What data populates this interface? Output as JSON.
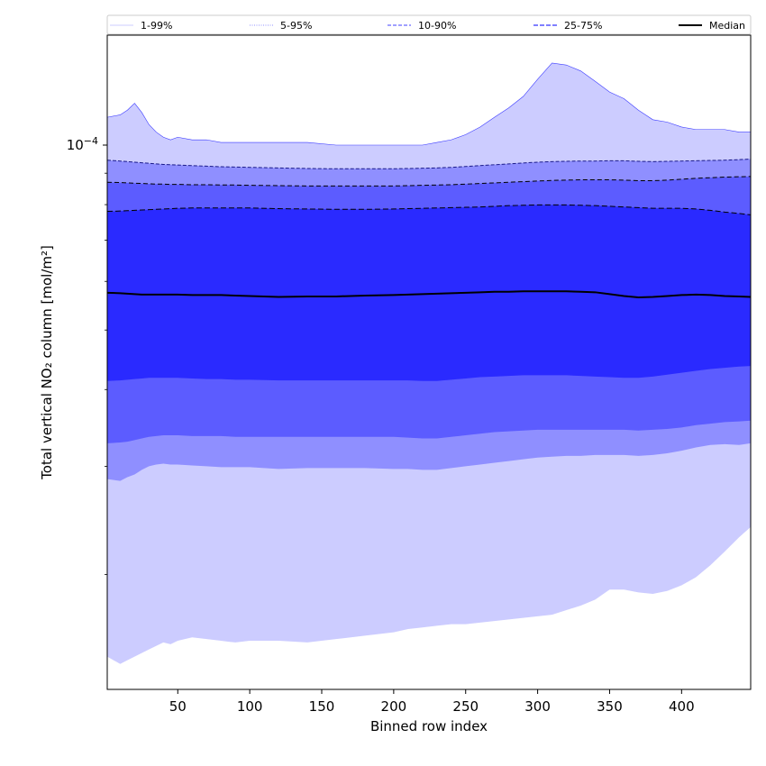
{
  "chart_data": {
    "type": "area",
    "xlabel": "Binned row index",
    "ylabel": "Total vertical NO₂ column [mol/m²]",
    "xlim": [
      1,
      448
    ],
    "ylim": [
      1.3e-05,
      0.000151
    ],
    "yscale": "log",
    "x_ticks": [
      50,
      100,
      150,
      200,
      250,
      300,
      350,
      400
    ],
    "y_tick_labels": [
      {
        "value": 0.0001,
        "base": "10",
        "exponent": "−4"
      }
    ],
    "y_minor_ticks": [
      2e-05,
      3e-05,
      4e-05,
      5e-05,
      6e-05,
      7e-05,
      8e-05,
      9e-05
    ],
    "legend": {
      "placement": "top, full width above plot",
      "entries": [
        {
          "label": "1-99%",
          "style": "solid",
          "color": "#ccccff"
        },
        {
          "label": "5-95%",
          "style": "dotted",
          "color": "#8f8fff"
        },
        {
          "label": "10-90%",
          "style": "dashed",
          "color": "#5c5cff"
        },
        {
          "label": "25-75%",
          "style": "dashed",
          "color": "#2a2aff"
        },
        {
          "label": "Median",
          "style": "solid",
          "color": "#000000"
        }
      ]
    },
    "x": [
      1,
      10,
      15,
      20,
      25,
      30,
      35,
      40,
      45,
      50,
      60,
      70,
      80,
      90,
      100,
      120,
      140,
      160,
      180,
      200,
      210,
      220,
      230,
      240,
      250,
      260,
      270,
      280,
      290,
      300,
      310,
      320,
      330,
      340,
      350,
      360,
      370,
      380,
      390,
      400,
      410,
      420,
      430,
      440,
      448
    ],
    "series": [
      {
        "name": "1-99%",
        "color": "#ccccff",
        "upper": [
          0.000111,
          0.000112,
          0.000114,
          0.000117,
          0.000113,
          0.000108,
          0.000105,
          0.000103,
          0.000102,
          0.000103,
          0.000102,
          0.000102,
          0.000101,
          0.000101,
          0.000101,
          0.000101,
          0.000101,
          0.0001,
          0.0001,
          0.0001,
          0.0001,
          0.0001,
          0.000101,
          0.000102,
          0.000104,
          0.000107,
          0.000111,
          0.000115,
          0.00012,
          0.000128,
          0.000136,
          0.000135,
          0.000132,
          0.000127,
          0.000122,
          0.000119,
          0.000114,
          0.00011,
          0.000109,
          0.000107,
          0.000106,
          0.000106,
          0.000106,
          0.000105,
          0.000105
        ],
        "lower": [
          1.47e-05,
          1.43e-05,
          1.45e-05,
          1.47e-05,
          1.49e-05,
          1.51e-05,
          1.53e-05,
          1.55e-05,
          1.54e-05,
          1.56e-05,
          1.58e-05,
          1.57e-05,
          1.56e-05,
          1.55e-05,
          1.56e-05,
          1.56e-05,
          1.55e-05,
          1.57e-05,
          1.59e-05,
          1.61e-05,
          1.63e-05,
          1.64e-05,
          1.65e-05,
          1.66e-05,
          1.66e-05,
          1.67e-05,
          1.68e-05,
          1.69e-05,
          1.7e-05,
          1.71e-05,
          1.72e-05,
          1.75e-05,
          1.78e-05,
          1.82e-05,
          1.89e-05,
          1.89e-05,
          1.87e-05,
          1.86e-05,
          1.88e-05,
          1.92e-05,
          1.98e-05,
          2.07e-05,
          2.18e-05,
          2.3e-05,
          2.39e-05
        ]
      },
      {
        "name": "5-95%",
        "color": "#8f8fff",
        "upper": [
          9.45e-05,
          9.42e-05,
          9.4e-05,
          9.38e-05,
          9.36e-05,
          9.34e-05,
          9.32e-05,
          9.3e-05,
          9.29e-05,
          9.28e-05,
          9.26e-05,
          9.24e-05,
          9.22e-05,
          9.21e-05,
          9.2e-05,
          9.18e-05,
          9.16e-05,
          9.15e-05,
          9.15e-05,
          9.15e-05,
          9.16e-05,
          9.17e-05,
          9.18e-05,
          9.2e-05,
          9.23e-05,
          9.26e-05,
          9.29e-05,
          9.32e-05,
          9.35e-05,
          9.38e-05,
          9.4e-05,
          9.41e-05,
          9.42e-05,
          9.42e-05,
          9.43e-05,
          9.43e-05,
          9.41e-05,
          9.4e-05,
          9.41e-05,
          9.42e-05,
          9.43e-05,
          9.44e-05,
          9.45e-05,
          9.47e-05,
          9.49e-05
        ],
        "lower": [
          2.86e-05,
          2.84e-05,
          2.88e-05,
          2.91e-05,
          2.96e-05,
          3e-05,
          3.02e-05,
          3.03e-05,
          3.02e-05,
          3.02e-05,
          3.01e-05,
          3e-05,
          2.99e-05,
          2.99e-05,
          2.99e-05,
          2.97e-05,
          2.98e-05,
          2.98e-05,
          2.98e-05,
          2.97e-05,
          2.97e-05,
          2.96e-05,
          2.96e-05,
          2.98e-05,
          3e-05,
          3.02e-05,
          3.04e-05,
          3.06e-05,
          3.08e-05,
          3.1e-05,
          3.11e-05,
          3.12e-05,
          3.12e-05,
          3.13e-05,
          3.13e-05,
          3.13e-05,
          3.12e-05,
          3.13e-05,
          3.15e-05,
          3.18e-05,
          3.22e-05,
          3.25e-05,
          3.26e-05,
          3.25e-05,
          3.27e-05
        ]
      },
      {
        "name": "10-90%",
        "color": "#5c5cff",
        "upper": [
          8.7e-05,
          8.69e-05,
          8.68e-05,
          8.67e-05,
          8.66e-05,
          8.65e-05,
          8.64e-05,
          8.64e-05,
          8.63e-05,
          8.63e-05,
          8.62e-05,
          8.62e-05,
          8.61e-05,
          8.61e-05,
          8.6e-05,
          8.59e-05,
          8.58e-05,
          8.58e-05,
          8.58e-05,
          8.58e-05,
          8.59e-05,
          8.6e-05,
          8.61e-05,
          8.62e-05,
          8.64e-05,
          8.66e-05,
          8.68e-05,
          8.7e-05,
          8.72e-05,
          8.74e-05,
          8.76e-05,
          8.77e-05,
          8.78e-05,
          8.78e-05,
          8.78e-05,
          8.77e-05,
          8.75e-05,
          8.75e-05,
          8.77e-05,
          8.8e-05,
          8.83e-05,
          8.85e-05,
          8.87e-05,
          8.88e-05,
          8.89e-05
        ],
        "lower": [
          3.27e-05,
          3.28e-05,
          3.29e-05,
          3.31e-05,
          3.33e-05,
          3.35e-05,
          3.36e-05,
          3.37e-05,
          3.37e-05,
          3.37e-05,
          3.36e-05,
          3.36e-05,
          3.36e-05,
          3.35e-05,
          3.35e-05,
          3.35e-05,
          3.35e-05,
          3.35e-05,
          3.35e-05,
          3.35e-05,
          3.34e-05,
          3.33e-05,
          3.33e-05,
          3.35e-05,
          3.37e-05,
          3.39e-05,
          3.41e-05,
          3.42e-05,
          3.43e-05,
          3.44e-05,
          3.44e-05,
          3.44e-05,
          3.44e-05,
          3.44e-05,
          3.44e-05,
          3.44e-05,
          3.43e-05,
          3.44e-05,
          3.45e-05,
          3.47e-05,
          3.5e-05,
          3.52e-05,
          3.54e-05,
          3.55e-05,
          3.56e-05
        ]
      },
      {
        "name": "25-75%",
        "color": "#2a2aff",
        "upper": [
          7.8e-05,
          7.81e-05,
          7.82e-05,
          7.83e-05,
          7.84e-05,
          7.85e-05,
          7.86e-05,
          7.87e-05,
          7.88e-05,
          7.89e-05,
          7.9e-05,
          7.9e-05,
          7.9e-05,
          7.9e-05,
          7.9e-05,
          7.88e-05,
          7.87e-05,
          7.86e-05,
          7.86e-05,
          7.87e-05,
          7.88e-05,
          7.89e-05,
          7.9e-05,
          7.91e-05,
          7.92e-05,
          7.93e-05,
          7.95e-05,
          7.97e-05,
          7.98e-05,
          7.99e-05,
          7.99e-05,
          7.99e-05,
          7.98e-05,
          7.97e-05,
          7.95e-05,
          7.93e-05,
          7.91e-05,
          7.89e-05,
          7.89e-05,
          7.89e-05,
          7.87e-05,
          7.83e-05,
          7.78e-05,
          7.74e-05,
          7.7e-05
        ],
        "lower": [
          4.13e-05,
          4.14e-05,
          4.15e-05,
          4.16e-05,
          4.17e-05,
          4.18e-05,
          4.18e-05,
          4.18e-05,
          4.18e-05,
          4.18e-05,
          4.17e-05,
          4.16e-05,
          4.16e-05,
          4.15e-05,
          4.15e-05,
          4.14e-05,
          4.14e-05,
          4.14e-05,
          4.14e-05,
          4.14e-05,
          4.14e-05,
          4.13e-05,
          4.13e-05,
          4.15e-05,
          4.17e-05,
          4.19e-05,
          4.2e-05,
          4.21e-05,
          4.22e-05,
          4.22e-05,
          4.22e-05,
          4.22e-05,
          4.21e-05,
          4.2e-05,
          4.19e-05,
          4.18e-05,
          4.18e-05,
          4.2e-05,
          4.23e-05,
          4.26e-05,
          4.29e-05,
          4.32e-05,
          4.34e-05,
          4.36e-05,
          4.37e-05
        ]
      },
      {
        "name": "Median",
        "color": "#000000",
        "values": [
          5.75e-05,
          5.74e-05,
          5.73e-05,
          5.72e-05,
          5.71e-05,
          5.71e-05,
          5.71e-05,
          5.71e-05,
          5.71e-05,
          5.71e-05,
          5.7e-05,
          5.7e-05,
          5.7e-05,
          5.69e-05,
          5.68e-05,
          5.66e-05,
          5.67e-05,
          5.67e-05,
          5.69e-05,
          5.7e-05,
          5.71e-05,
          5.72e-05,
          5.73e-05,
          5.74e-05,
          5.75e-05,
          5.76e-05,
          5.77e-05,
          5.77e-05,
          5.78e-05,
          5.78e-05,
          5.78e-05,
          5.78e-05,
          5.77e-05,
          5.76e-05,
          5.72e-05,
          5.68e-05,
          5.65e-05,
          5.66e-05,
          5.68e-05,
          5.7e-05,
          5.71e-05,
          5.7e-05,
          5.68e-05,
          5.67e-05,
          5.66e-05
        ]
      }
    ]
  }
}
